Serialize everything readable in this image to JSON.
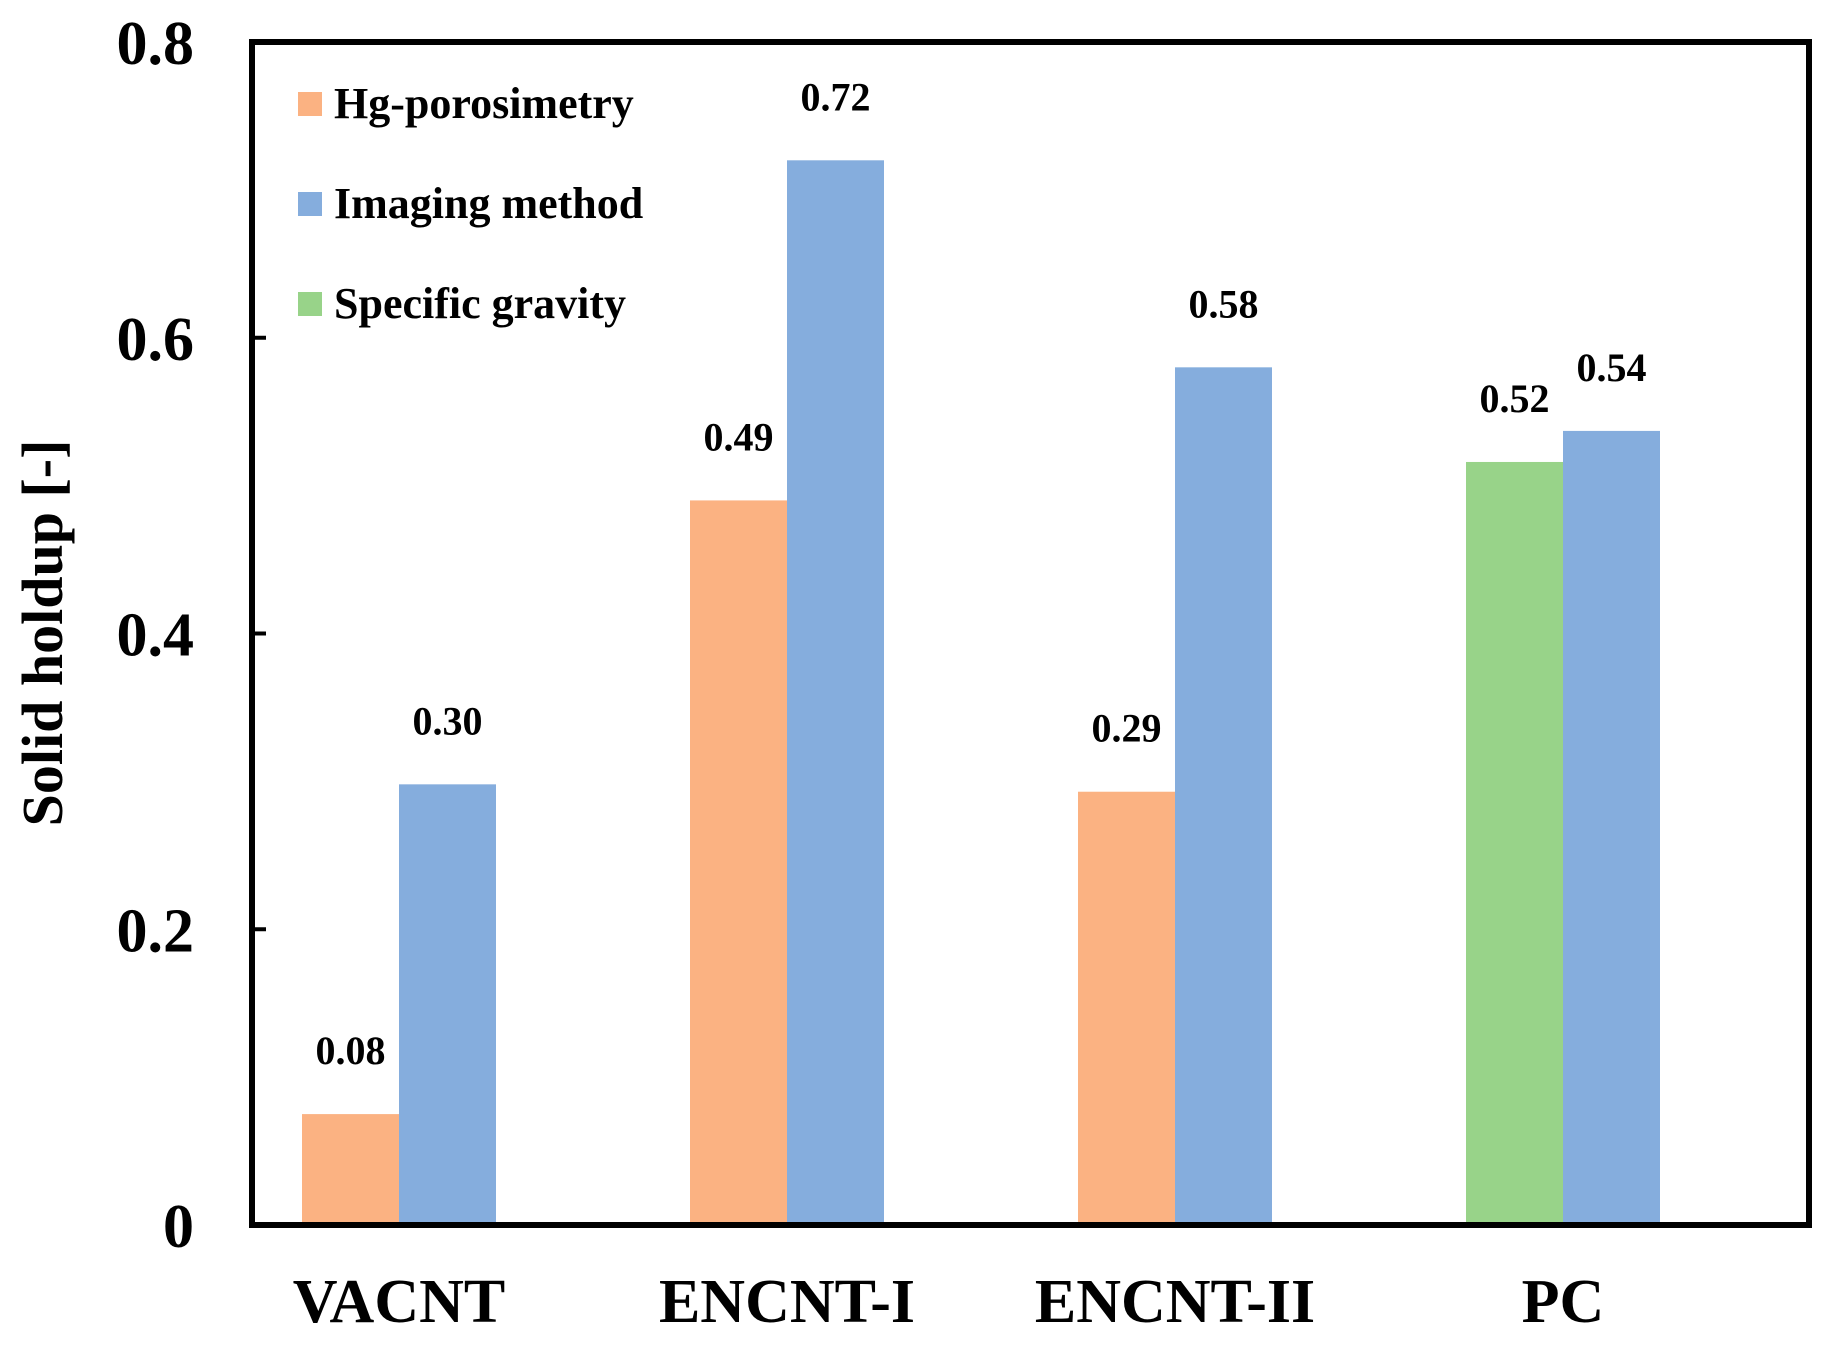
{
  "colors": {
    "hg": "#FBB282",
    "imaging": "#85ADDD",
    "specific": "#98D389",
    "axis": "#000000"
  },
  "chart_data": {
    "type": "bar",
    "title": "",
    "xlabel": "",
    "ylabel": "Solid holdup [-]",
    "ylim": [
      0,
      0.8
    ],
    "yticks": [
      0,
      0.2,
      0.4,
      0.6,
      0.8
    ],
    "ytick_labels": [
      "0",
      "0.2",
      "0.4",
      "0.6",
      "0.8"
    ],
    "categories": [
      "VACNT",
      "ENCNT-I",
      "ENCNT-II",
      "PC"
    ],
    "legend_position": "top-left",
    "series": [
      {
        "name": "Hg-porosimetry",
        "color_key": "hg",
        "values": [
          0.075,
          0.49,
          0.293,
          null
        ],
        "labels": [
          "0.08",
          "0.49",
          "0.29",
          null
        ]
      },
      {
        "name": "Imaging method",
        "color_key": "imaging",
        "values": [
          0.298,
          0.72,
          0.58,
          0.537
        ],
        "labels": [
          "0.30",
          "0.72",
          "0.58",
          "0.54"
        ]
      },
      {
        "name": "Specific gravity",
        "color_key": "specific",
        "values": [
          null,
          null,
          null,
          0.516
        ],
        "labels": [
          null,
          null,
          null,
          "0.52"
        ]
      }
    ],
    "bar_groups": [
      [
        "Hg-porosimetry",
        "Imaging method"
      ],
      [
        "Hg-porosimetry",
        "Imaging method"
      ],
      [
        "Hg-porosimetry",
        "Imaging method"
      ],
      [
        "Specific gravity",
        "Imaging method"
      ]
    ],
    "grid": false
  }
}
